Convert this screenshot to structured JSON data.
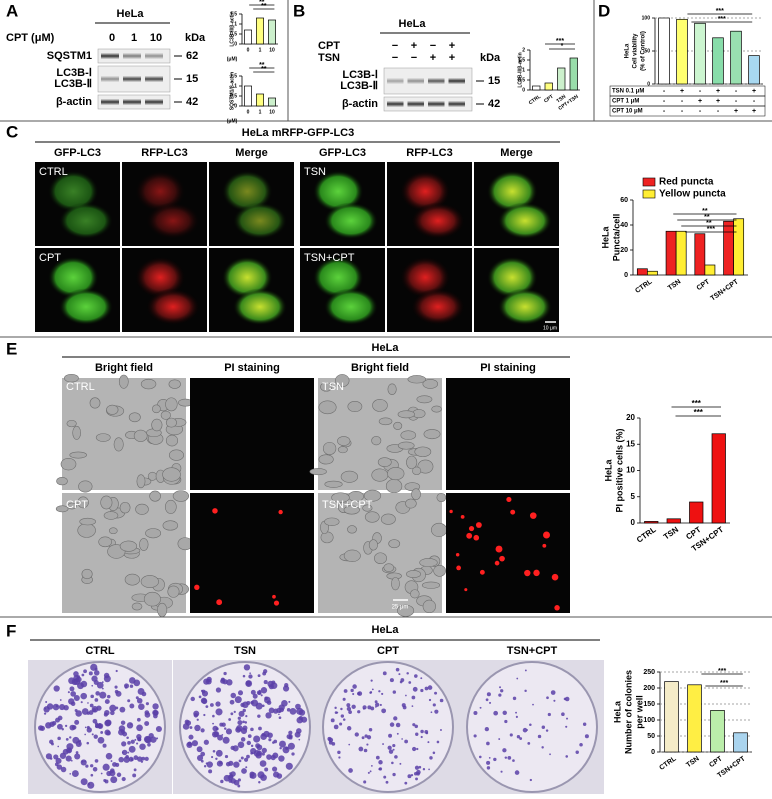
{
  "panels": {
    "a": {
      "label": "A",
      "cell_line": "HeLa",
      "treatment": "CPT (μM)",
      "doses": [
        "0",
        "1",
        "10"
      ],
      "kda": "kDa",
      "blots": [
        {
          "names": [
            "SQSTM1"
          ],
          "mw": 62
        },
        {
          "names": [
            "LC3B-Ⅰ",
            "LC3B-Ⅱ"
          ],
          "mw": 15
        },
        {
          "names": [
            "β-actin"
          ],
          "mw": 42
        }
      ]
    },
    "b": {
      "label": "B",
      "cell_line": "HeLa",
      "kda": "kDa",
      "rows": [
        {
          "label": "CPT",
          "signs": [
            "−",
            "+",
            "−",
            "+"
          ]
        },
        {
          "label": "TSN",
          "signs": [
            "−",
            "−",
            "+",
            "+"
          ]
        }
      ],
      "blots": [
        {
          "names": [
            "LC3B-Ⅰ",
            "LC3B-Ⅱ"
          ],
          "mw": 15
        },
        {
          "names": [
            "β-actin"
          ],
          "mw": 42
        }
      ]
    },
    "c": {
      "label": "C",
      "title": "HeLa mRFP-GFP-LC3",
      "columns": [
        "GFP-LC3",
        "RFP-LC3",
        "Merge",
        "GFP-LC3",
        "RFP-LC3",
        "Merge"
      ],
      "conditions": [
        "CTRL",
        "TSN",
        "CPT",
        "TSN+CPT"
      ],
      "scale_bar": "10 μm"
    },
    "d": {
      "label": "D",
      "rows": [
        {
          "label": "TSN 0.1 μM",
          "signs": [
            "-",
            "+",
            "-",
            "+",
            "-",
            "+"
          ]
        },
        {
          "label": "CPT 1 μM",
          "signs": [
            "-",
            "-",
            "+",
            "+",
            "-",
            "-"
          ]
        },
        {
          "label": "CPT 10 μM",
          "signs": [
            "-",
            "-",
            "-",
            "-",
            "+",
            "+"
          ]
        }
      ]
    },
    "e": {
      "label": "E",
      "title": "HeLa",
      "columns": [
        "Bright field",
        "PI staining",
        "Bright field",
        "PI staining"
      ],
      "conditions": [
        "CTRL",
        "TSN",
        "CPT",
        "TSN+CPT"
      ],
      "scale_bar": "25 μm"
    },
    "f": {
      "label": "F",
      "title": "HeLa",
      "conditions": [
        "CTRL",
        "TSN",
        "CPT",
        "TSN+CPT"
      ]
    }
  },
  "chart_data": [
    {
      "type": "bar",
      "y_label": [
        "LC3B-II/β-actin"
      ],
      "x_label": "(μM)",
      "categories": [
        "0",
        "1",
        "10"
      ],
      "values": [
        0.7,
        1.3,
        1.2
      ],
      "colors": [
        "#ffffff",
        "#ffff80",
        "#ccf0cc"
      ],
      "ylim": [
        0,
        1.5
      ],
      "yticks": [
        0,
        0.5,
        1,
        1.5
      ],
      "annotations": [
        "**",
        "**"
      ]
    },
    {
      "type": "bar",
      "y_label": [
        "SQSTM1/β-actin"
      ],
      "x_label": "(μM)",
      "categories": [
        "0",
        "1",
        "10"
      ],
      "values": [
        1.0,
        0.6,
        0.4
      ],
      "colors": [
        "#ffffff",
        "#ffff80",
        "#ccf0cc"
      ],
      "ylim": [
        0,
        1.5
      ],
      "yticks": [
        0,
        0.5,
        1,
        1.5
      ],
      "annotations": [
        "**",
        "**"
      ]
    },
    {
      "type": "bar",
      "y_label": [
        "LC3B-II/β-actin"
      ],
      "categories": [
        "CTRL",
        "CPT",
        "TSN",
        "CPT+TSN"
      ],
      "values": [
        0.2,
        0.35,
        1.1,
        1.6
      ],
      "colors": [
        "#ffffff",
        "#ffff80",
        "#ccf0cc",
        "#99ddaa"
      ],
      "ylim": [
        0,
        2
      ],
      "yticks": [
        0,
        0.5,
        1,
        1.5,
        2
      ],
      "annotations": [
        "***",
        "*"
      ]
    },
    {
      "type": "bar",
      "y_label": [
        "HeLa",
        "Cell viability",
        "(% of Control)"
      ],
      "values": [
        100,
        98,
        92,
        70,
        80,
        43
      ],
      "colors": [
        "#ffffff",
        "#ffff70",
        "#ccf5d0",
        "#88ddaa",
        "#99e0b0",
        "#a8d8f0"
      ],
      "ylim": [
        0,
        100
      ],
      "yticks": [
        0,
        50,
        100
      ],
      "grid": true,
      "annotations": [
        "***",
        "***"
      ]
    },
    {
      "type": "bar",
      "y_label": [
        "HeLa",
        "Puncta/cell"
      ],
      "categories": [
        "CTRL",
        "TSN",
        "CPT",
        "TSN+CPT"
      ],
      "series": [
        {
          "name": "Red puncta",
          "color": "#ee2222",
          "values": [
            5,
            35,
            33,
            43
          ]
        },
        {
          "name": "Yellow puncta",
          "color": "#ffee33",
          "values": [
            3,
            35,
            8,
            45
          ]
        }
      ],
      "ylim": [
        0,
        60
      ],
      "yticks": [
        0,
        20,
        40,
        60
      ],
      "annotations": [
        "**",
        "**",
        "**",
        "***"
      ]
    },
    {
      "type": "bar",
      "y_label": [
        "HeLa",
        "PI positive cells (%)"
      ],
      "categories": [
        "CTRL",
        "TSN",
        "CPT",
        "TSN+CPT"
      ],
      "values": [
        0.3,
        0.8,
        4,
        17
      ],
      "colors": [
        "#ee1111",
        "#ee1111",
        "#ee1111",
        "#ee1111"
      ],
      "ylim": [
        0,
        20
      ],
      "yticks": [
        0,
        5,
        10,
        15,
        20
      ],
      "annotations": [
        "***",
        "***"
      ]
    },
    {
      "type": "bar",
      "y_label": [
        "HeLa",
        "Number of colonies",
        "per well"
      ],
      "categories": [
        "CTRL",
        "TSN",
        "CPT",
        "TSN+CPT"
      ],
      "values": [
        220,
        210,
        130,
        60
      ],
      "colors": [
        "#f5ecc8",
        "#ffee44",
        "#bbeeaa",
        "#aad4ee"
      ],
      "ylim": [
        0,
        250
      ],
      "yticks": [
        0,
        50,
        100,
        150,
        200,
        250
      ],
      "grid": true,
      "annotations": [
        "***",
        "***"
      ]
    }
  ]
}
